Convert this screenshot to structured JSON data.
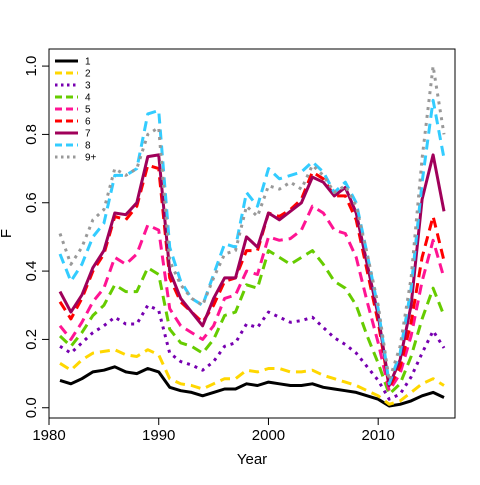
{
  "chart_data": {
    "type": "line",
    "xlabel": "Year",
    "ylabel": "F",
    "xlim": [
      1980,
      2017
    ],
    "ylim": [
      -0.03,
      1.05
    ],
    "x_ticks": [
      1980,
      1990,
      2000,
      2010
    ],
    "x_tick_labels": [
      "1980",
      "1990",
      "2000",
      "2010"
    ],
    "y_ticks": [
      0.0,
      0.2,
      0.4,
      0.6,
      0.8,
      1.0
    ],
    "y_tick_labels": [
      "0.0",
      "0.2",
      "0.4",
      "0.6",
      "0.8",
      "1.0"
    ],
    "grid": false,
    "legend_position": "top-left",
    "x": [
      1981,
      1982,
      1983,
      1984,
      1985,
      1986,
      1987,
      1988,
      1989,
      1990,
      1991,
      1992,
      1993,
      1994,
      1995,
      1996,
      1997,
      1998,
      1999,
      2000,
      2001,
      2002,
      2003,
      2004,
      2005,
      2006,
      2007,
      2008,
      2009,
      2010,
      2011,
      2012,
      2013,
      2014,
      2015,
      2016
    ],
    "series": [
      {
        "name": "1",
        "color": "#000000",
        "dash": "solid",
        "values": [
          0.08,
          0.07,
          0.085,
          0.105,
          0.11,
          0.12,
          0.105,
          0.1,
          0.115,
          0.105,
          0.06,
          0.05,
          0.045,
          0.035,
          0.045,
          0.055,
          0.055,
          0.07,
          0.065,
          0.075,
          0.07,
          0.065,
          0.065,
          0.07,
          0.06,
          0.055,
          0.05,
          0.045,
          0.035,
          0.025,
          0.005,
          0.01,
          0.02,
          0.035,
          0.045,
          0.03
        ]
      },
      {
        "name": "2",
        "color": "#FFD700",
        "dash": "dashed",
        "values": [
          0.13,
          0.11,
          0.14,
          0.16,
          0.165,
          0.17,
          0.155,
          0.15,
          0.17,
          0.155,
          0.085,
          0.07,
          0.065,
          0.055,
          0.07,
          0.085,
          0.085,
          0.11,
          0.105,
          0.115,
          0.115,
          0.105,
          0.105,
          0.11,
          0.095,
          0.085,
          0.075,
          0.065,
          0.05,
          0.035,
          0.01,
          0.02,
          0.045,
          0.07,
          0.085,
          0.065
        ]
      },
      {
        "name": "3",
        "color": "#7700B0",
        "dash": "dotted",
        "values": [
          0.18,
          0.16,
          0.19,
          0.22,
          0.24,
          0.265,
          0.245,
          0.245,
          0.3,
          0.285,
          0.16,
          0.135,
          0.125,
          0.11,
          0.135,
          0.18,
          0.19,
          0.245,
          0.235,
          0.28,
          0.265,
          0.25,
          0.255,
          0.265,
          0.235,
          0.205,
          0.185,
          0.16,
          0.12,
          0.08,
          0.025,
          0.04,
          0.09,
          0.16,
          0.225,
          0.175
        ]
      },
      {
        "name": "4",
        "color": "#66CC00",
        "dash": "dashed",
        "values": [
          0.21,
          0.18,
          0.22,
          0.27,
          0.3,
          0.36,
          0.34,
          0.34,
          0.41,
          0.39,
          0.23,
          0.19,
          0.18,
          0.16,
          0.2,
          0.27,
          0.28,
          0.36,
          0.35,
          0.46,
          0.44,
          0.42,
          0.44,
          0.46,
          0.42,
          0.37,
          0.35,
          0.3,
          0.21,
          0.13,
          0.04,
          0.07,
          0.15,
          0.26,
          0.35,
          0.27
        ]
      },
      {
        "name": "5",
        "color": "#FF1493",
        "dash": "dashed",
        "values": [
          0.24,
          0.2,
          0.25,
          0.31,
          0.35,
          0.44,
          0.42,
          0.45,
          0.535,
          0.52,
          0.29,
          0.24,
          0.22,
          0.2,
          0.24,
          0.32,
          0.33,
          0.4,
          0.39,
          0.5,
          0.49,
          0.495,
          0.52,
          0.59,
          0.57,
          0.52,
          0.51,
          0.44,
          0.31,
          0.19,
          0.05,
          0.1,
          0.21,
          0.37,
          0.49,
          0.38
        ]
      },
      {
        "name": "6",
        "color": "#FF0000",
        "dash": "dashed",
        "values": [
          0.31,
          0.26,
          0.32,
          0.4,
          0.45,
          0.56,
          0.55,
          0.59,
          0.71,
          0.7,
          0.38,
          0.31,
          0.28,
          0.25,
          0.3,
          0.37,
          0.38,
          0.46,
          0.46,
          0.57,
          0.56,
          0.58,
          0.61,
          0.69,
          0.67,
          0.62,
          0.62,
          0.55,
          0.4,
          0.25,
          0.06,
          0.12,
          0.25,
          0.44,
          0.56,
          0.43
        ]
      },
      {
        "name": "7",
        "color": "#A0005A",
        "dash": "solid",
        "values": [
          0.34,
          0.28,
          0.33,
          0.41,
          0.46,
          0.57,
          0.565,
          0.6,
          0.735,
          0.74,
          0.4,
          0.32,
          0.28,
          0.24,
          0.32,
          0.38,
          0.38,
          0.5,
          0.47,
          0.57,
          0.55,
          0.575,
          0.6,
          0.675,
          0.66,
          0.62,
          0.645,
          0.57,
          0.42,
          0.27,
          0.065,
          0.14,
          0.3,
          0.61,
          0.74,
          0.575
        ]
      },
      {
        "name": "8",
        "color": "#33CCFF",
        "dash": "dashed",
        "values": [
          0.45,
          0.37,
          0.42,
          0.5,
          0.54,
          0.68,
          0.68,
          0.7,
          0.86,
          0.87,
          0.47,
          0.37,
          0.32,
          0.3,
          0.39,
          0.48,
          0.47,
          0.63,
          0.59,
          0.7,
          0.67,
          0.68,
          0.69,
          0.72,
          0.69,
          0.63,
          0.66,
          0.6,
          0.45,
          0.29,
          0.07,
          0.16,
          0.35,
          0.66,
          0.9,
          0.73
        ]
      },
      {
        "name": "9+",
        "color": "#999999",
        "dash": "dotted",
        "values": [
          0.51,
          0.42,
          0.47,
          0.55,
          0.58,
          0.7,
          0.68,
          0.7,
          0.8,
          0.82,
          0.43,
          0.36,
          0.32,
          0.3,
          0.38,
          0.45,
          0.46,
          0.59,
          0.56,
          0.65,
          0.64,
          0.66,
          0.64,
          0.71,
          0.68,
          0.63,
          0.65,
          0.59,
          0.45,
          0.3,
          0.08,
          0.18,
          0.38,
          0.73,
          1.0,
          0.8
        ]
      }
    ]
  }
}
